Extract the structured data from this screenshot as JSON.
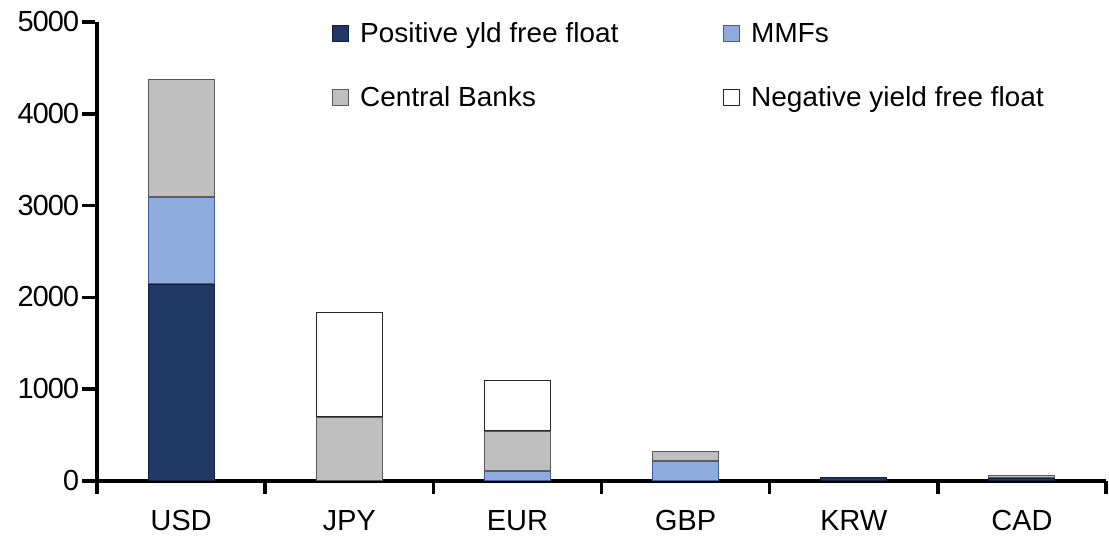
{
  "chart_data": {
    "type": "stacked-bar",
    "title": "",
    "xlabel": "",
    "ylabel": "",
    "grid": false,
    "legend_position": "top-inside",
    "categories": [
      "USD",
      "JPY",
      "EUR",
      "GBP",
      "KRW",
      "CAD"
    ],
    "series": [
      {
        "name": "Positive yld free float",
        "color": "#1F3864",
        "border_color": "#111F3B",
        "values": [
          2150,
          0,
          0,
          0,
          40,
          30
        ]
      },
      {
        "name": "MMFs",
        "color": "#8FAADC",
        "border_color": "#3F5E9E",
        "values": [
          940,
          0,
          110,
          220,
          0,
          0
        ]
      },
      {
        "name": "Central Banks",
        "color": "#BFBFBF",
        "border_color": "#595959",
        "values": [
          1285,
          695,
          430,
          105,
          0,
          35
        ]
      },
      {
        "name": "Negative yield free float",
        "color": "#FFFFFF",
        "border_color": "#262626",
        "values": [
          0,
          1150,
          565,
          0,
          0,
          0
        ]
      }
    ],
    "totals": [
      4375,
      1845,
      1105,
      325,
      40,
      65
    ],
    "y_axis": {
      "min": 0,
      "max": 5000,
      "step": 1000,
      "tick_labels": [
        "0",
        "1000",
        "2000",
        "3000",
        "4000",
        "5000"
      ]
    },
    "legend_entries": [
      "Positive yld free float",
      "MMFs",
      "Central Banks",
      "Negative yield free float"
    ]
  },
  "colors": {
    "axis": "#000000",
    "text": "#000000",
    "background": "#FFFFFF"
  }
}
